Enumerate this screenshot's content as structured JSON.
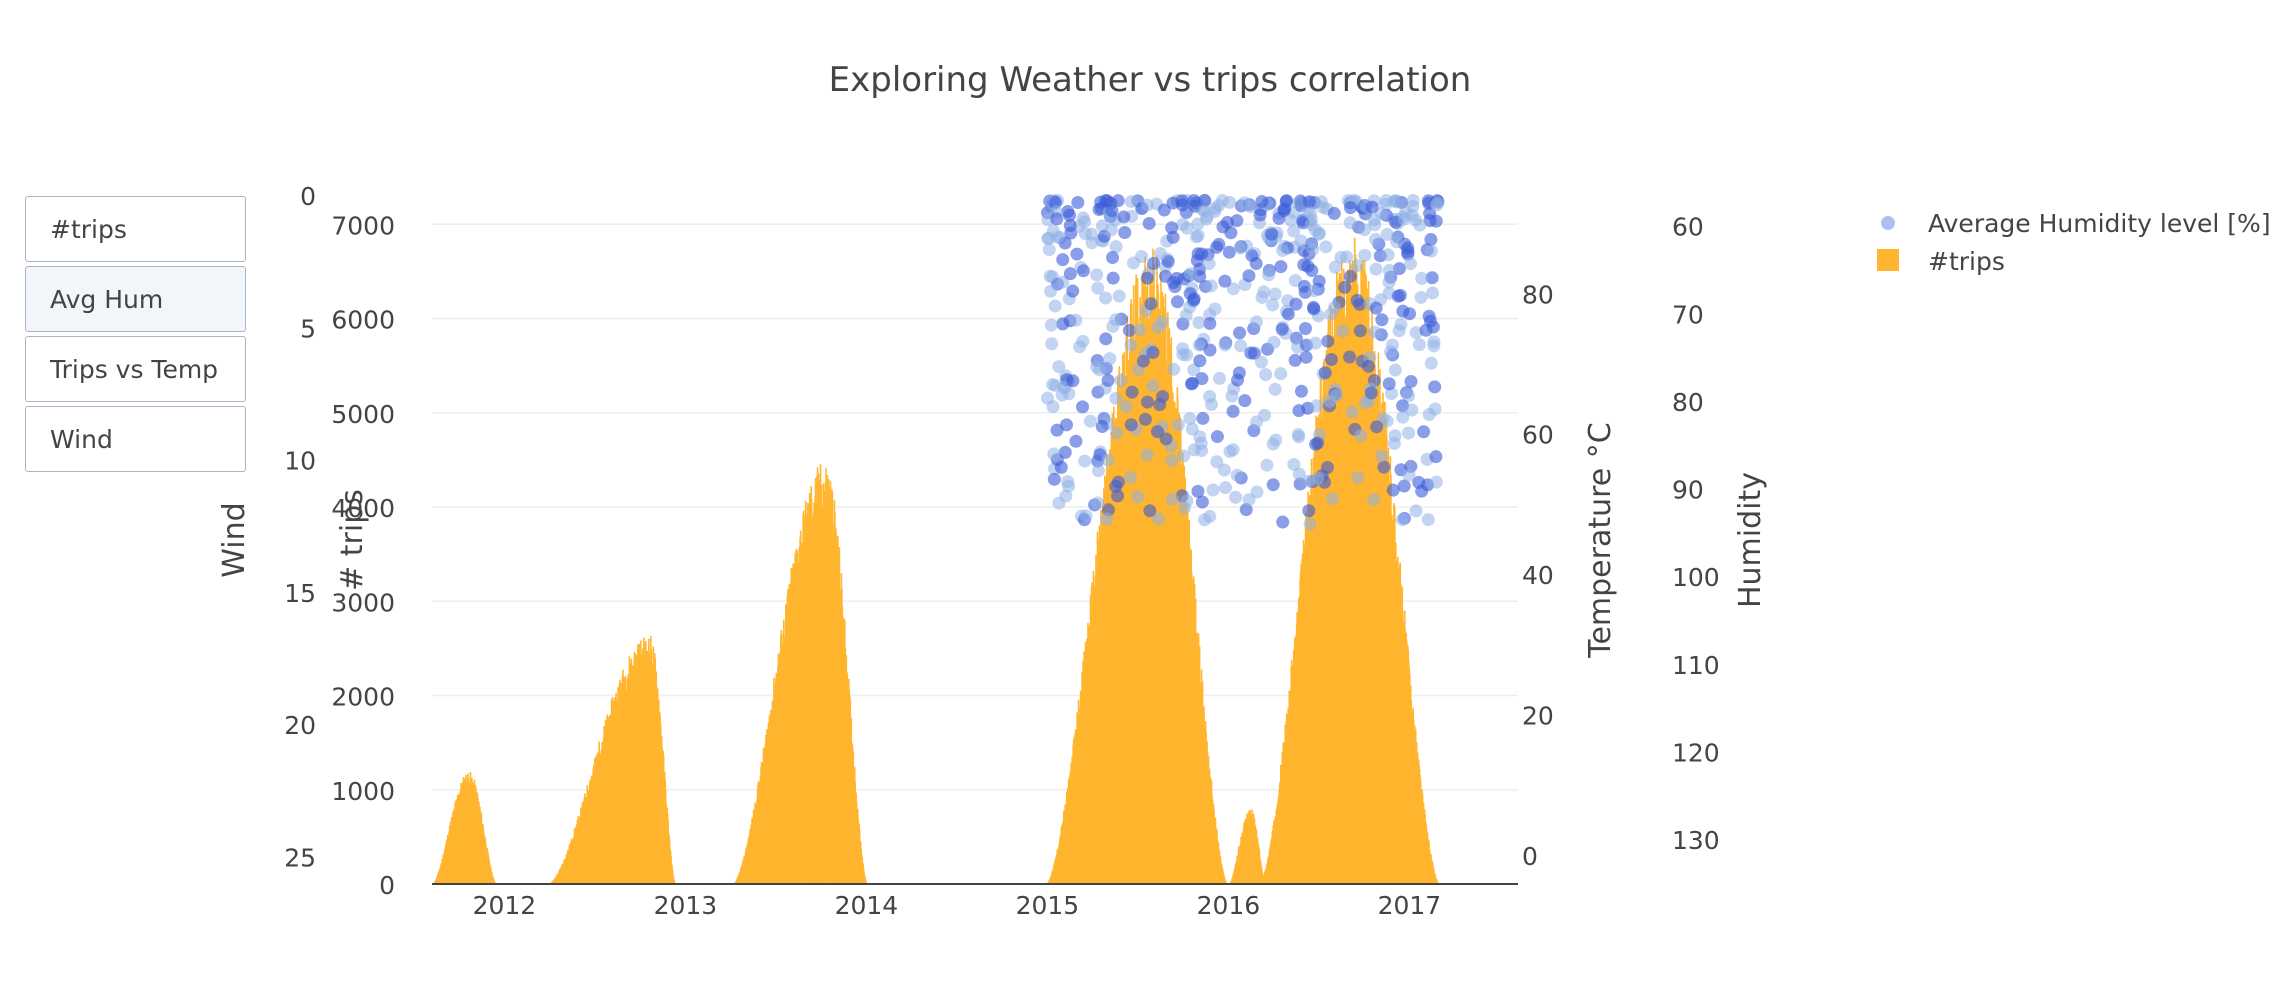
{
  "title": "Exploring Weather vs trips correlation",
  "menu": {
    "buttons": [
      {
        "label": "#trips",
        "active": false
      },
      {
        "label": "Avg Hum",
        "active": true
      },
      {
        "label": "Trips vs Temp",
        "active": false
      },
      {
        "label": "Wind",
        "active": false
      }
    ]
  },
  "colors": {
    "bars": "#ffb52e",
    "humidity_points": "#3a5bd9",
    "axis": "#444444",
    "grid": "#eeeeee"
  },
  "chart_data": {
    "type": "bar",
    "title": "Exploring Weather vs trips correlation",
    "axes": {
      "x": {
        "tick_labels": [
          "2012",
          "2013",
          "2014",
          "2015",
          "2016",
          "2017"
        ],
        "range": [
          2011.6,
          2017.6
        ]
      },
      "y_trips": {
        "label": "# trips",
        "range": [
          0,
          7300
        ],
        "ticks": [
          0,
          1000,
          2000,
          3000,
          4000,
          5000,
          6000,
          7000
        ]
      },
      "y_wind": {
        "label": "Wind",
        "range": [
          0,
          26
        ],
        "reversed": true,
        "ticks": [
          0,
          5,
          10,
          15,
          20,
          25
        ]
      },
      "y_temperature": {
        "label": "Temperature °C",
        "range": [
          -4,
          94
        ],
        "ticks": [
          0,
          20,
          40,
          60,
          80
        ]
      },
      "y_humidity": {
        "label": "Humidity",
        "range": [
          56.5,
          135
        ],
        "reversed": true,
        "ticks": [
          60,
          70,
          80,
          90,
          100,
          110,
          120,
          130
        ]
      }
    },
    "grid": true,
    "legend": {
      "position": "top-right"
    },
    "series": [
      {
        "name": "#trips",
        "type": "bar",
        "seasons": [
          {
            "start": 2011.6,
            "end": 2011.95,
            "peak": 1200,
            "peak_at": 2011.8
          },
          {
            "start": 2012.24,
            "end": 2012.94,
            "peak": 2650,
            "peak_at": 2012.8
          },
          {
            "start": 2013.26,
            "end": 2014.0,
            "peak": 4500,
            "peak_at": 2013.77
          },
          {
            "start": 2014.99,
            "end": 2015.99,
            "peak": 6750,
            "peak_at": 2015.57
          },
          {
            "start": 2016.0,
            "end": 2016.2,
            "peak": 800,
            "peak_at": 2016.12
          },
          {
            "start": 2016.17,
            "end": 2017.16,
            "peak": 6900,
            "peak_at": 2016.68
          }
        ]
      },
      {
        "name": "Average Humidity level [%]",
        "type": "scatter",
        "x_range": [
          2015.0,
          2017.16
        ],
        "y_range": [
          57,
          94
        ]
      }
    ]
  }
}
